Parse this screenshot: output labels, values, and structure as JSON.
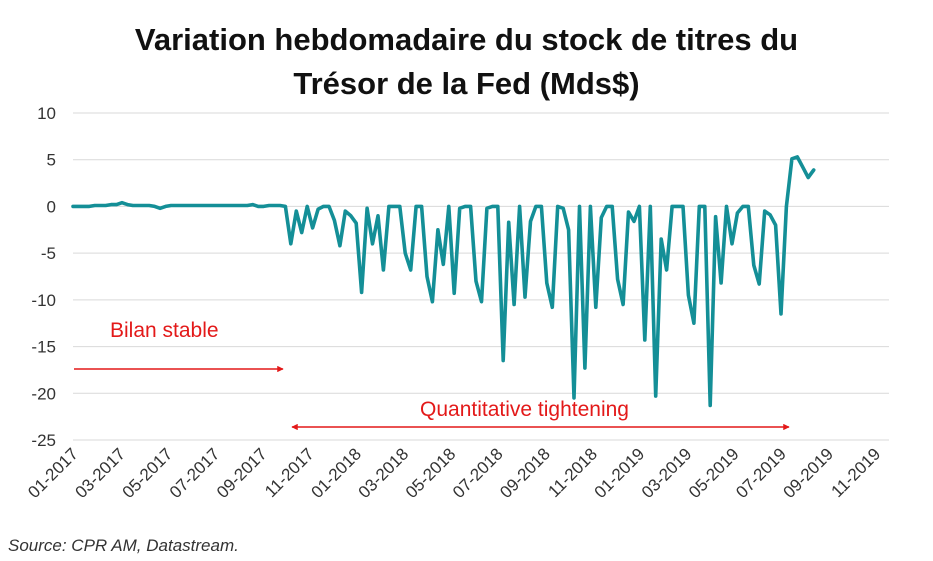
{
  "title": {
    "line1": "Variation hebdomadaire du stock de titres du",
    "line2": "Trésor de la Fed (Mds$)"
  },
  "source": "Source: CPR AM, Datastream.",
  "colors": {
    "series": "#148f97",
    "annotation": "#e31919",
    "grid": "#d9d9d9"
  },
  "chart_data": {
    "type": "line",
    "title": "Variation hebdomadaire du stock de titres du Trésor de la Fed (Mds$)",
    "xlabel": "",
    "ylabel": "",
    "ylim": [
      -25,
      10
    ],
    "yticks": [
      10,
      5,
      0,
      -5,
      -10,
      -15,
      -20,
      -25
    ],
    "xticks": [
      "01-2017",
      "03-2017",
      "05-2017",
      "07-2017",
      "09-2017",
      "11-2017",
      "01-2018",
      "03-2018",
      "05-2018",
      "07-2018",
      "09-2018",
      "11-2018",
      "01-2019",
      "03-2019",
      "05-2019",
      "07-2019",
      "09-2019",
      "11-2019"
    ],
    "grid": "horizontal",
    "legend": "none",
    "series": [
      {
        "x_start": "01-2017",
        "x_step": "week",
        "values": [
          0,
          0,
          0,
          0,
          0.1,
          0.1,
          0.1,
          0.2,
          0.2,
          0.4,
          0.2,
          0.1,
          0.1,
          0.1,
          0.1,
          0,
          -0.2,
          0,
          0.1,
          0.1,
          0.1,
          0.1,
          0.1,
          0.1,
          0.1,
          0.1,
          0.1,
          0.1,
          0.1,
          0.1,
          0.1,
          0.1,
          0.1,
          0.2,
          0,
          0,
          0.1,
          0.1,
          0.1,
          0,
          -4,
          -0.5,
          -2.8,
          0,
          -2.3,
          -0.3,
          0,
          0,
          -1.5,
          -4.2,
          -0.5,
          -1,
          -1.8,
          -9.2,
          -0.2,
          -4,
          -1,
          -6.8,
          0,
          0,
          0,
          -5,
          -6.8,
          0,
          0,
          -7.5,
          -10.2,
          -2.5,
          -6.2,
          0,
          -9.3,
          -0.2,
          0,
          0,
          -8,
          -10.2,
          -0.2,
          0,
          0,
          -16.5,
          -1.7,
          -10.5,
          0,
          -9.7,
          -1.6,
          0,
          0,
          -8.2,
          -10.8,
          0,
          -0.2,
          -2.5,
          -20.5,
          0,
          -17.3,
          0,
          -10.8,
          -1.2,
          0,
          0,
          -7.8,
          -10.5,
          -0.6,
          -1.6,
          0,
          -14.3,
          0,
          -20.3,
          -3.5,
          -6.8,
          0,
          0,
          0,
          -9.5,
          -12.5,
          0,
          0,
          -21.3,
          -1.1,
          -8.2,
          0,
          -4,
          -0.7,
          0,
          0,
          -6.3,
          -8.3,
          -0.5,
          -0.9,
          -2,
          -11.5,
          0,
          5.1,
          5.3,
          4.2,
          3.1,
          3.9
        ]
      }
    ],
    "annotations": [
      {
        "text": "Bilan stable",
        "arrow_from": "01-2017",
        "arrow_to": "10-2017",
        "style": "single"
      },
      {
        "text": "Quantitative tightening",
        "arrow_from": "10-2017",
        "arrow_to": "08-2019",
        "style": "double"
      }
    ]
  }
}
